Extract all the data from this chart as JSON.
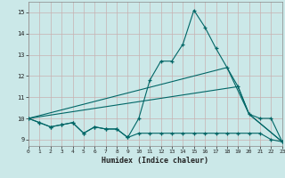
{
  "xlabel": "Humidex (Indice chaleur)",
  "background_color": "#cbe8e8",
  "grid_color": "#c8b0b0",
  "line_color": "#006666",
  "x": [
    0,
    1,
    2,
    3,
    4,
    5,
    6,
    7,
    8,
    9,
    10,
    11,
    12,
    13,
    14,
    15,
    16,
    17,
    18,
    19,
    20,
    21,
    22,
    23
  ],
  "line_curve": [
    10.0,
    9.8,
    9.6,
    9.7,
    9.8,
    9.3,
    9.6,
    9.5,
    9.5,
    9.1,
    10.0,
    11.8,
    12.7,
    12.7,
    13.5,
    15.1,
    14.3,
    13.3,
    12.4,
    11.5,
    10.2,
    10.0,
    10.0,
    8.9
  ],
  "line_bottom": [
    10.0,
    9.8,
    9.6,
    9.7,
    9.8,
    9.3,
    9.6,
    9.5,
    9.5,
    9.1,
    9.3,
    9.3,
    9.3,
    9.3,
    9.3,
    9.3,
    9.3,
    9.3,
    9.3,
    9.3,
    9.3,
    9.3,
    9.0,
    8.9
  ],
  "line_trend1_x": [
    0,
    19,
    20,
    23
  ],
  "line_trend1_y": [
    10.0,
    11.5,
    10.2,
    8.9
  ],
  "line_trend2_x": [
    0,
    18,
    20,
    23
  ],
  "line_trend2_y": [
    10.0,
    12.4,
    10.2,
    8.9
  ],
  "ylim": [
    8.7,
    15.5
  ],
  "xlim": [
    0,
    23
  ],
  "yticks": [
    9,
    10,
    11,
    12,
    13,
    14,
    15
  ],
  "xticks": [
    0,
    1,
    2,
    3,
    4,
    5,
    6,
    7,
    8,
    9,
    10,
    11,
    12,
    13,
    14,
    15,
    16,
    17,
    18,
    19,
    20,
    21,
    22,
    23
  ]
}
